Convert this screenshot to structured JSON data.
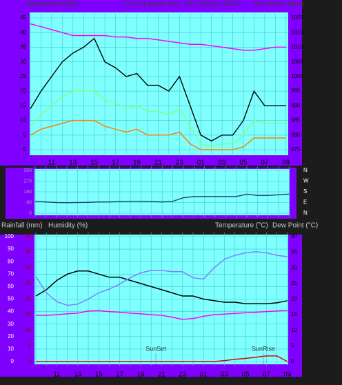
{
  "chart_data": [
    {
      "type": "line",
      "title": "24 hour graph day : 09 February 2020",
      "ylabel": "Windspeed (kph)",
      "y2label": "Barometer (hpa)",
      "categories": [
        null,
        null,
        "11",
        null,
        "13",
        null,
        "15",
        null,
        "17",
        null,
        "19",
        null,
        "21",
        null,
        "23",
        null,
        "01",
        null,
        "03",
        null,
        "05",
        null,
        "07",
        null,
        "09"
      ],
      "ylim": [
        0,
        45
      ],
      "yticks": [
        0,
        5,
        10,
        15,
        20,
        25,
        30,
        35,
        40,
        45
      ],
      "y2lim": [
        975,
        1020
      ],
      "y2ticks": [
        975,
        980,
        985,
        990,
        995,
        1000,
        1005,
        1010,
        1015,
        1020
      ],
      "grid": true,
      "series": [
        {
          "color": "#000000",
          "values": [
            14,
            20,
            25,
            30,
            33,
            35,
            38,
            30,
            28,
            25,
            26,
            22,
            22,
            20,
            25,
            15,
            5,
            3,
            5,
            5,
            10,
            20,
            15,
            15,
            15
          ]
        },
        {
          "color": "#80ff80",
          "values": [
            8,
            12,
            15,
            18,
            20,
            20,
            20,
            17,
            16,
            14,
            15,
            13,
            13,
            12,
            14,
            8,
            2,
            1,
            2,
            2,
            5,
            10,
            9,
            9,
            9
          ]
        },
        {
          "color": "#ff8000",
          "values": [
            5,
            7,
            8,
            9,
            10,
            10,
            10,
            8,
            7,
            6,
            7,
            5,
            5,
            5,
            6,
            2,
            0,
            0,
            0,
            0,
            1,
            4,
            4,
            4,
            4
          ]
        },
        {
          "color": "#ff00ff",
          "axis": "y2",
          "values": [
            1018,
            1017,
            1016,
            1015,
            1014,
            1014,
            1014,
            1014,
            1013.5,
            1013.5,
            1013,
            1013,
            1012.5,
            1012,
            1011.5,
            1011,
            1011,
            1010.5,
            1010,
            1009.5,
            1009,
            1009,
            1009.5,
            1010,
            1010
          ]
        }
      ]
    },
    {
      "type": "line",
      "ylim": [
        0,
        360
      ],
      "yticks": [
        0,
        90,
        180,
        270,
        360
      ],
      "y2lim": [
        0,
        360
      ],
      "y2ticks": [
        {
          "value": 0,
          "label": "N"
        },
        {
          "value": 90,
          "label": "E"
        },
        {
          "value": 180,
          "label": "S"
        },
        {
          "value": 270,
          "label": "W"
        },
        {
          "value": 360,
          "label": "N"
        }
      ],
      "grid": true,
      "series": [
        {
          "color": "#1f4e79",
          "values": [
            100,
            95,
            90,
            88,
            90,
            92,
            95,
            95,
            98,
            100,
            100,
            98,
            95,
            100,
            130,
            140,
            140,
            140,
            140,
            140,
            160,
            150,
            150,
            155,
            160
          ]
        }
      ]
    },
    {
      "type": "line",
      "axis_labels": [
        "Rainfall (mm)",
        "Humidity (%)",
        "Temperature (°C)",
        "Dew Point (°C)"
      ],
      "categories": [
        null,
        null,
        "11",
        null,
        "13",
        null,
        "15",
        null,
        "17",
        null,
        "19",
        null,
        "21",
        null,
        "23",
        null,
        "01",
        null,
        "03",
        null,
        "05",
        null,
        "07",
        null,
        "09"
      ],
      "ylim": [
        0,
        100
      ],
      "yticks": [
        0,
        10,
        20,
        30,
        40,
        50,
        60,
        70,
        80,
        90,
        100
      ],
      "y2lim": [
        0,
        40
      ],
      "y2ticks": [
        0,
        5,
        10,
        15,
        20,
        25,
        30,
        35,
        40
      ],
      "y3lim": [
        0,
        40
      ],
      "y3ticks": [
        0,
        5,
        10,
        15,
        20,
        25,
        30,
        35,
        40
      ],
      "grid": true,
      "annotations": [
        "SunSet",
        "SunRise"
      ],
      "series": [
        {
          "color": "#000000",
          "axis": "y2",
          "values": [
            21,
            23,
            26,
            28,
            29,
            29,
            28,
            27,
            27,
            26,
            25,
            24,
            23,
            22,
            21,
            21,
            20,
            19.5,
            19,
            19,
            18.5,
            18.5,
            18.5,
            18.8,
            19.5
          ]
        },
        {
          "color": "#8080ff",
          "values": [
            68,
            55,
            48,
            45,
            46,
            50,
            55,
            58,
            62,
            67,
            71,
            73,
            73,
            72,
            72,
            67,
            66,
            75,
            82,
            85,
            87,
            88,
            87,
            85,
            84
          ]
        },
        {
          "color": "#ff00ff",
          "axis": "y2",
          "values": [
            14.8,
            14.8,
            15,
            15.3,
            15.5,
            16.2,
            16.3,
            16,
            15.8,
            15.5,
            15.3,
            15,
            14.8,
            14.2,
            13.5,
            13.8,
            14.5,
            15,
            15.2,
            15.4,
            15.6,
            15.8,
            16,
            16.2,
            16.4
          ]
        },
        {
          "color": "#e00000",
          "axis": "y3",
          "values": [
            0,
            0,
            0,
            0,
            0,
            0,
            0,
            0,
            0,
            0,
            0,
            0,
            0,
            0,
            0,
            0,
            0,
            0,
            0.3,
            0.7,
            1,
            1.4,
            1.8,
            1.8,
            0
          ]
        }
      ]
    }
  ]
}
